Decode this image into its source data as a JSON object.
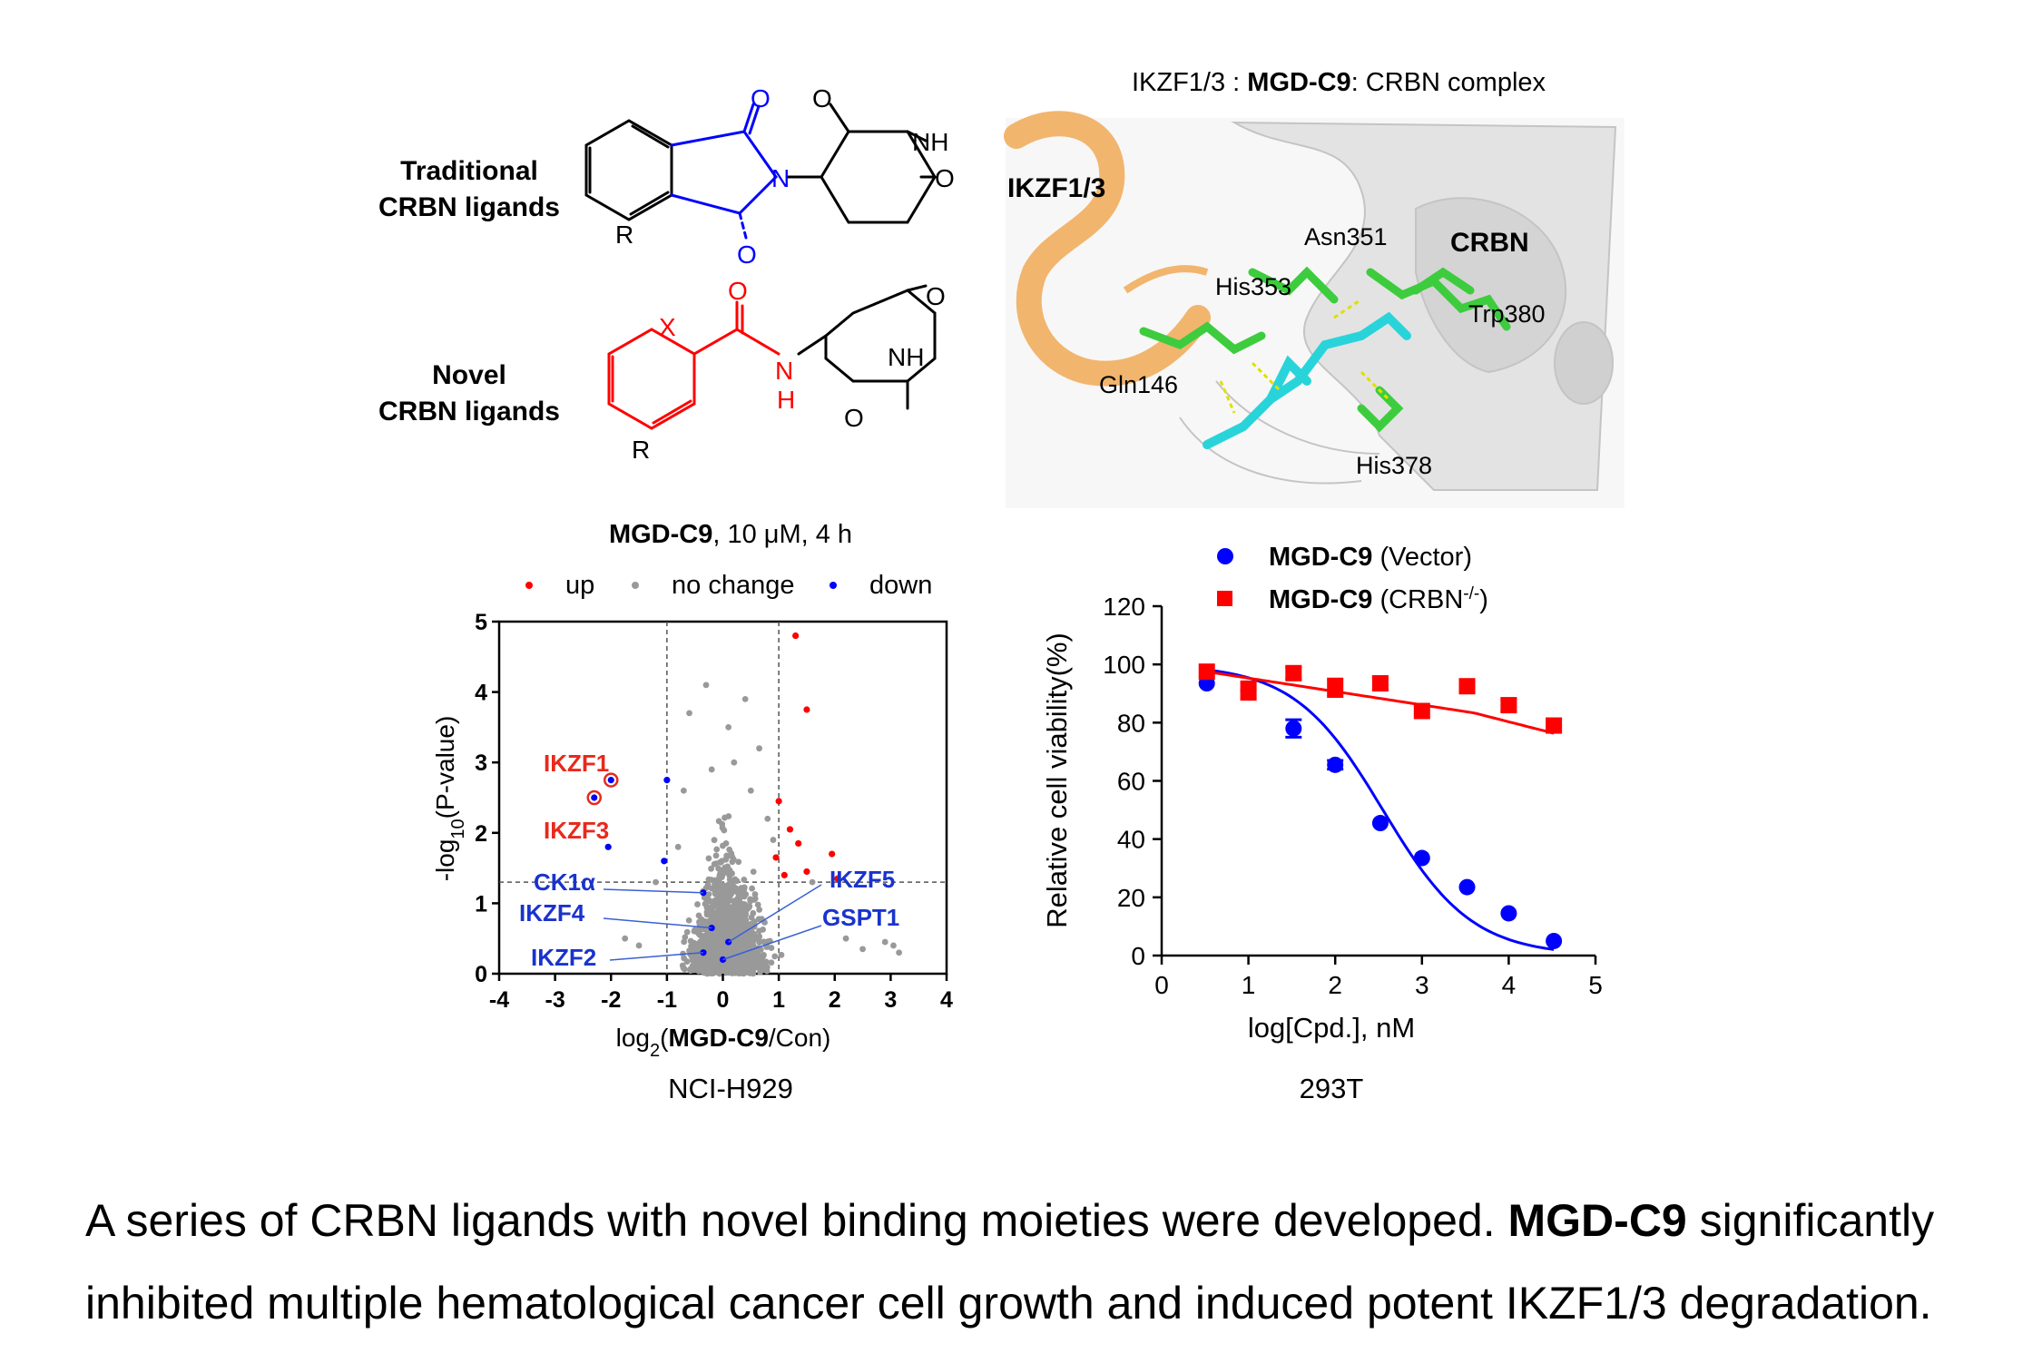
{
  "chemistry": {
    "traditional_label_1": "Traditional",
    "traditional_label_2": "CRBN ligands",
    "novel_label_1": "Novel",
    "novel_label_2": "CRBN ligands",
    "atoms": {
      "O": "O",
      "N": "N",
      "NH": "NH",
      "H": "H",
      "R": "R",
      "X": "X"
    },
    "colors": {
      "traditional_moiety": "#0000ff",
      "novel_moiety": "#ff0000"
    }
  },
  "structure": {
    "title_prefix": "IKZF1/3 : ",
    "title_bold": "MGD-C9",
    "title_suffix": ": CRBN complex",
    "labels": {
      "ikzf": "IKZF1/3",
      "crbn": "CRBN",
      "asn": "Asn351",
      "his353": "His353",
      "trp": "Trp380",
      "gln": "Gln146",
      "his378": "His378"
    },
    "colors": {
      "ikzf_ribbon": "#f2b56e",
      "crbn_ribbon": "#d6d6d6",
      "residues": "#3dcc3d",
      "ligand": "#28d4d9"
    }
  },
  "chart_data": [
    {
      "type": "scatter",
      "title_bold": "MGD-C9",
      "title_rest": ", 10 μM, 4 h",
      "legend": [
        {
          "label": "up",
          "color": "#ff0000"
        },
        {
          "label": "no change",
          "color": "#999999"
        },
        {
          "label": "down",
          "color": "#0000ff"
        }
      ],
      "ylabel": "-log10(P-value)",
      "xlabel": "log2(MGD-C9/Con)",
      "xlim": [
        -4,
        4
      ],
      "ylim": [
        0,
        5
      ],
      "xticks": [
        "-4",
        "-3",
        "-2",
        "-1",
        "0",
        "1",
        "2",
        "3",
        "4"
      ],
      "yticks": [
        "0",
        "1",
        "2",
        "3",
        "4",
        "5"
      ],
      "thresholds": {
        "x": [
          -1,
          1
        ],
        "y": 1.3
      },
      "cell_line": "NCI-H929",
      "up_points": [
        [
          1.3,
          4.8
        ],
        [
          1.5,
          3.75
        ],
        [
          1.0,
          2.45
        ],
        [
          1.2,
          2.05
        ],
        [
          1.35,
          1.85
        ],
        [
          1.95,
          1.7
        ],
        [
          0.95,
          1.65
        ],
        [
          1.5,
          1.45
        ],
        [
          1.1,
          1.4
        ],
        [
          2.05,
          1.35
        ]
      ],
      "down_points": [
        [
          -2.0,
          2.75
        ],
        [
          -2.3,
          2.5
        ],
        [
          -1.0,
          2.75
        ],
        [
          -2.05,
          1.8
        ],
        [
          -1.05,
          1.6
        ],
        [
          -0.35,
          1.15
        ],
        [
          -0.2,
          0.65
        ],
        [
          0.1,
          0.45
        ],
        [
          -0.35,
          0.3
        ],
        [
          0.0,
          0.2
        ]
      ],
      "grey_sample": [
        [
          -0.3,
          4.1
        ],
        [
          0.4,
          3.9
        ],
        [
          0.1,
          3.5
        ],
        [
          -0.6,
          3.7
        ],
        [
          0.65,
          3.2
        ],
        [
          0.2,
          3.0
        ],
        [
          -0.2,
          2.9
        ],
        [
          0.5,
          2.6
        ],
        [
          0.8,
          2.2
        ],
        [
          -0.7,
          2.6
        ],
        [
          2.9,
          0.45
        ],
        [
          3.05,
          0.4
        ],
        [
          3.15,
          0.3
        ],
        [
          2.2,
          0.5
        ],
        [
          2.5,
          0.35
        ],
        [
          -1.75,
          0.5
        ],
        [
          -1.5,
          0.4
        ],
        [
          -1.2,
          1.3
        ],
        [
          1.6,
          1.3
        ],
        [
          -0.8,
          1.8
        ],
        [
          0.9,
          1.9
        ]
      ],
      "annotations": [
        {
          "text": "IKZF1",
          "color": "#e8291c"
        },
        {
          "text": "IKZF3",
          "color": "#e8291c"
        },
        {
          "text": "CK1α",
          "color": "#1a33cc"
        },
        {
          "text": "IKZF4",
          "color": "#1a33cc"
        },
        {
          "text": "IKZF2",
          "color": "#1a33cc"
        },
        {
          "text": "IKZF5",
          "color": "#1a33cc"
        },
        {
          "text": "GSPT1",
          "color": "#1a33cc"
        }
      ]
    },
    {
      "type": "line",
      "legend": [
        {
          "bold": "MGD-C9",
          "rest": " (Vector)",
          "color": "#0000ff",
          "marker": "circle"
        },
        {
          "bold": "MGD-C9",
          "rest": " (CRBN",
          "sup": "-/-",
          "tail": ")",
          "color": "#ff0000",
          "marker": "square"
        }
      ],
      "ylabel": "Relative cell viability(%)",
      "xlabel": "log[Cpd.], nM",
      "xlim": [
        0,
        5
      ],
      "ylim": [
        0,
        120
      ],
      "xticks": [
        "0",
        "1",
        "2",
        "3",
        "4",
        "5"
      ],
      "yticks": [
        "0",
        "20",
        "40",
        "60",
        "80",
        "100",
        "120"
      ],
      "cell_line": "293T",
      "x": [
        0.52,
        1.0,
        1.52,
        2.0,
        2.52,
        3.0,
        3.52,
        4.0,
        4.52
      ],
      "series": [
        {
          "name": "MGD-C9 (Vector)",
          "values": [
            93.5,
            91,
            78,
            65.5,
            45.5,
            33.5,
            23.5,
            14.5,
            5
          ],
          "errors": [
            0,
            0,
            3,
            1.5,
            0,
            0,
            0,
            0,
            0
          ]
        },
        {
          "name": "MGD-C9 (CRBN-/-)",
          "values": [
            97.5,
            91,
            97,
            92,
            93.5,
            84,
            92.5,
            86,
            79
          ],
          "errors": [
            0,
            3,
            2,
            3,
            2,
            0,
            2,
            2,
            0
          ]
        }
      ]
    }
  ],
  "caption": {
    "line1_pre": "A series of CRBN ligands with novel binding moieties were developed. ",
    "line1_bold": "MGD-C9",
    "line1_post": " significantly",
    "line2": "inhibited multiple hematological cancer cell growth and induced potent IKZF1/3 degradation."
  }
}
